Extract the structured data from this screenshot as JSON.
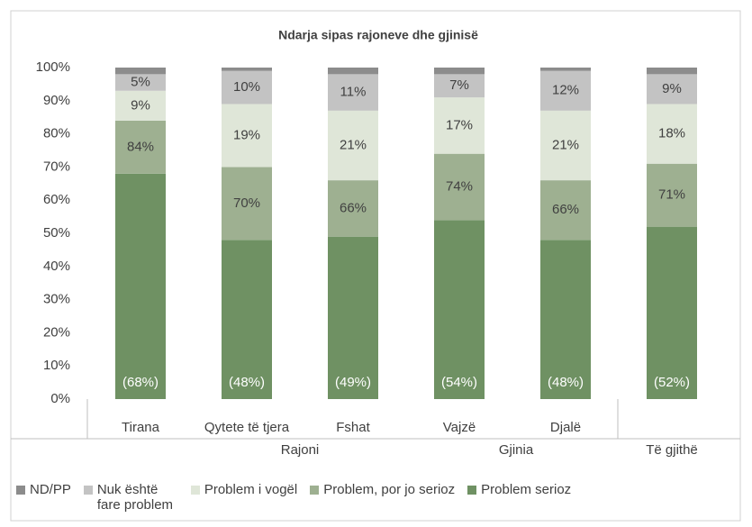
{
  "chart_data": {
    "type": "stacked_bar",
    "title": "Ndarja sipas rajoneve dhe gjinisë",
    "categories": [
      "Tirana",
      "Qytete të tjera",
      "Fshat",
      "Vajzë",
      "Djalë",
      null
    ],
    "group_labels": [
      "Rajoni",
      "Gjinia",
      "Të gjithë"
    ],
    "series": [
      {
        "name": "ND/PP",
        "color": "#8c8c8c",
        "values": [
          2,
          1,
          2,
          2,
          1,
          2
        ]
      },
      {
        "name": "Nuk është fare problem",
        "color": "#c3c3c3",
        "values": [
          5,
          10,
          11,
          7,
          12,
          9
        ],
        "value_labels": [
          "5%",
          "10%",
          "11%",
          "7%",
          "12%",
          "9%"
        ]
      },
      {
        "name": "Problem i vogël",
        "color": "#dfe6d8",
        "values": [
          9,
          19,
          21,
          17,
          21,
          18
        ],
        "value_labels": [
          "9%",
          "19%",
          "21%",
          "17%",
          "21%",
          "18%"
        ]
      },
      {
        "name": "Problem, por jo serioz",
        "color": "#9eb091",
        "values": [
          16,
          22,
          17,
          20,
          18,
          19
        ],
        "annotations": [
          "84%",
          "70%",
          "66%",
          "74%",
          "66%",
          "71%"
        ]
      },
      {
        "name": "Problem serioz",
        "color": "#6f9163",
        "values": [
          68,
          48,
          49,
          54,
          48,
          52
        ],
        "value_labels": [
          "(68%)",
          "(48%)",
          "(49%)",
          "(54%)",
          "(48%)",
          "(52%)"
        ]
      }
    ],
    "ylim": [
      0,
      100
    ],
    "yticks": [
      {
        "value": 0,
        "label": "0%"
      },
      {
        "value": 10,
        "label": "10%"
      },
      {
        "value": 20,
        "label": "20%"
      },
      {
        "value": 30,
        "label": "30%"
      },
      {
        "value": 40,
        "label": "40%"
      },
      {
        "value": 50,
        "label": "50%"
      },
      {
        "value": 60,
        "label": "60%"
      },
      {
        "value": 70,
        "label": "70%"
      },
      {
        "value": 80,
        "label": "80%"
      },
      {
        "value": 90,
        "label": "90%"
      },
      {
        "value": 100,
        "label": "100%"
      }
    ]
  }
}
